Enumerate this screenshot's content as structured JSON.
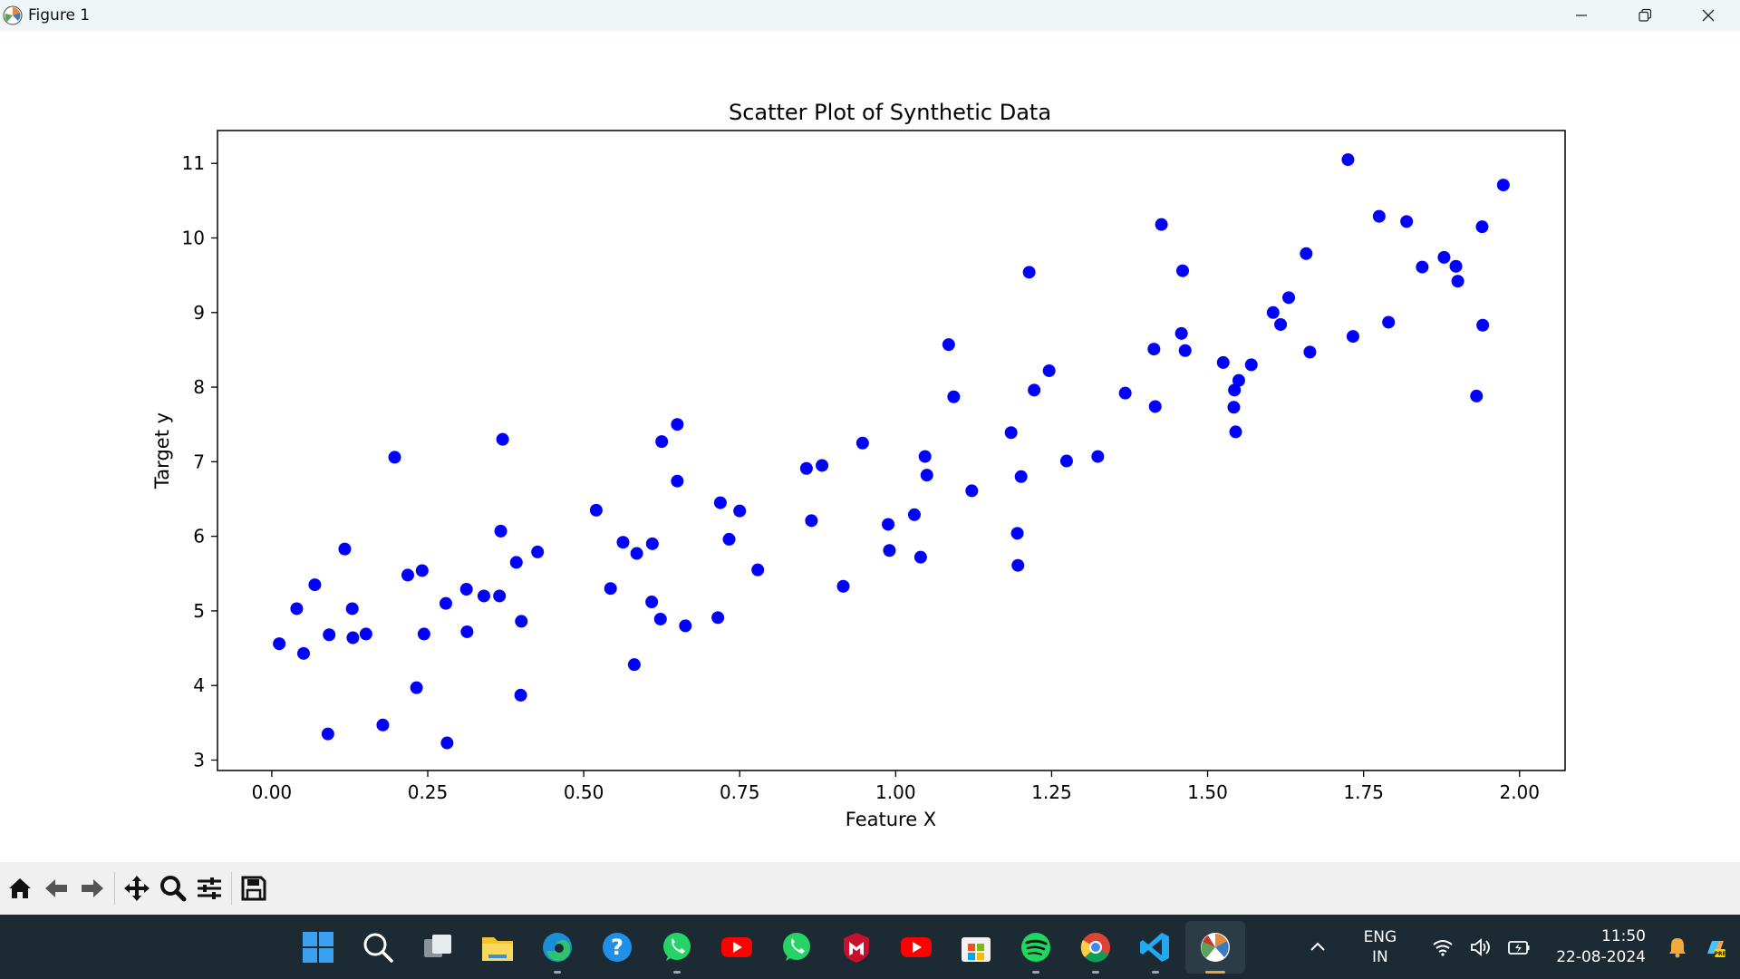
{
  "window": {
    "title": "Figure 1",
    "controls": [
      "minimize-icon",
      "restore-icon",
      "close-icon"
    ]
  },
  "chart_data": {
    "type": "scatter",
    "title": "Scatter Plot of Synthetic Data",
    "xlabel": "Feature X",
    "ylabel": "Target y",
    "xlim": [
      -0.087,
      2.073
    ],
    "ylim": [
      2.86,
      11.44
    ],
    "x_ticks": [
      0.0,
      0.25,
      0.5,
      0.75,
      1.0,
      1.25,
      1.5,
      1.75,
      2.0
    ],
    "x_tick_labels": [
      "0.00",
      "0.25",
      "0.50",
      "0.75",
      "1.00",
      "1.25",
      "1.50",
      "1.75",
      "2.00"
    ],
    "y_ticks": [
      3,
      4,
      5,
      6,
      7,
      8,
      9,
      10,
      11
    ],
    "y_tick_labels": [
      "3",
      "4",
      "5",
      "6",
      "7",
      "8",
      "9",
      "10",
      "11"
    ],
    "grid": false,
    "marker_color": "#0000ff",
    "series": [
      {
        "points": [
          [
            0.012,
            4.56
          ],
          [
            0.04,
            5.03
          ],
          [
            0.051,
            4.43
          ],
          [
            0.069,
            5.35
          ],
          [
            0.092,
            4.68
          ],
          [
            0.09,
            3.35
          ],
          [
            0.117,
            5.83
          ],
          [
            0.129,
            5.03
          ],
          [
            0.13,
            4.64
          ],
          [
            0.151,
            4.69
          ],
          [
            0.178,
            3.47
          ],
          [
            0.197,
            7.06
          ],
          [
            0.218,
            5.48
          ],
          [
            0.232,
            3.97
          ],
          [
            0.241,
            5.54
          ],
          [
            0.244,
            4.69
          ],
          [
            0.279,
            5.1
          ],
          [
            0.281,
            3.23
          ],
          [
            0.312,
            5.29
          ],
          [
            0.313,
            4.72
          ],
          [
            0.34,
            5.2
          ],
          [
            0.365,
            5.2
          ],
          [
            0.367,
            6.07
          ],
          [
            0.37,
            7.3
          ],
          [
            0.392,
            5.65
          ],
          [
            0.399,
            3.87
          ],
          [
            0.4,
            4.86
          ],
          [
            0.426,
            5.79
          ],
          [
            0.52,
            6.35
          ],
          [
            0.543,
            5.3
          ],
          [
            0.563,
            5.92
          ],
          [
            0.581,
            4.28
          ],
          [
            0.585,
            5.77
          ],
          [
            0.609,
            5.12
          ],
          [
            0.61,
            5.9
          ],
          [
            0.623,
            4.89
          ],
          [
            0.625,
            7.27
          ],
          [
            0.65,
            6.74
          ],
          [
            0.65,
            7.5
          ],
          [
            0.663,
            4.8
          ],
          [
            0.715,
            4.91
          ],
          [
            0.719,
            6.45
          ],
          [
            0.733,
            5.96
          ],
          [
            0.75,
            6.34
          ],
          [
            0.779,
            5.55
          ],
          [
            0.857,
            6.91
          ],
          [
            0.865,
            6.21
          ],
          [
            0.882,
            6.95
          ],
          [
            0.916,
            5.33
          ],
          [
            0.947,
            7.25
          ],
          [
            0.988,
            6.16
          ],
          [
            0.99,
            5.81
          ],
          [
            1.03,
            6.29
          ],
          [
            1.04,
            5.72
          ],
          [
            1.047,
            7.07
          ],
          [
            1.05,
            6.82
          ],
          [
            1.085,
            8.57
          ],
          [
            1.093,
            7.87
          ],
          [
            1.122,
            6.61
          ],
          [
            1.185,
            7.39
          ],
          [
            1.195,
            6.04
          ],
          [
            1.196,
            5.61
          ],
          [
            1.201,
            6.8
          ],
          [
            1.214,
            9.54
          ],
          [
            1.222,
            7.96
          ],
          [
            1.246,
            8.22
          ],
          [
            1.274,
            7.01
          ],
          [
            1.324,
            7.07
          ],
          [
            1.368,
            7.92
          ],
          [
            1.414,
            8.51
          ],
          [
            1.416,
            7.74
          ],
          [
            1.426,
            10.18
          ],
          [
            1.458,
            8.72
          ],
          [
            1.46,
            9.56
          ],
          [
            1.464,
            8.49
          ],
          [
            1.525,
            8.33
          ],
          [
            1.542,
            7.73
          ],
          [
            1.543,
            7.96
          ],
          [
            1.545,
            7.4
          ],
          [
            1.55,
            8.09
          ],
          [
            1.57,
            8.3
          ],
          [
            1.605,
            9.0
          ],
          [
            1.617,
            8.84
          ],
          [
            1.63,
            9.2
          ],
          [
            1.658,
            9.79
          ],
          [
            1.664,
            8.47
          ],
          [
            1.725,
            11.05
          ],
          [
            1.733,
            8.68
          ],
          [
            1.775,
            10.29
          ],
          [
            1.79,
            8.87
          ],
          [
            1.819,
            10.22
          ],
          [
            1.844,
            9.61
          ],
          [
            1.879,
            9.74
          ],
          [
            1.898,
            9.62
          ],
          [
            1.901,
            9.42
          ],
          [
            1.931,
            7.88
          ],
          [
            1.94,
            10.15
          ],
          [
            1.941,
            8.83
          ],
          [
            1.974,
            10.71
          ]
        ]
      }
    ]
  },
  "toolbar": {
    "tools": [
      "home-icon",
      "back-icon",
      "forward-icon",
      "pan-icon",
      "zoom-icon",
      "configure-subplots-icon",
      "save-icon"
    ]
  },
  "taskbar": {
    "apps": [
      "windows-start-icon",
      "search-icon",
      "task-view-icon",
      "file-explorer-icon",
      "edge-icon",
      "help-icon",
      "whatsapp-icon",
      "youtube-icon",
      "whatsapp-icon",
      "mcafee-icon",
      "youtube-icon",
      "microsoft-store-icon",
      "spotify-icon",
      "chrome-icon",
      "vscode-icon",
      "matplotlib-icon"
    ],
    "language_top": "ENG",
    "language_bottom": "IN",
    "time": "11:50",
    "date": "22-08-2024",
    "tray_icons": [
      "chevron-up-icon",
      "wifi-icon",
      "volume-icon",
      "battery-icon",
      "notification-bell-icon",
      "copilot-icon"
    ]
  }
}
